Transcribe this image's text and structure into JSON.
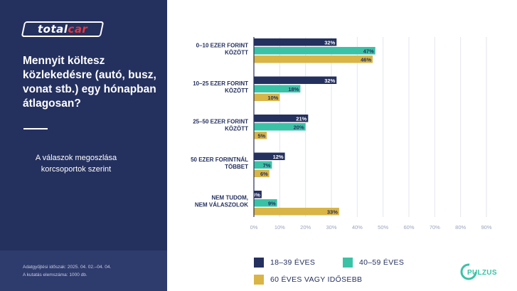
{
  "brand": {
    "logo_left": "total",
    "logo_right": "car",
    "partner": "PULZUS"
  },
  "question": "Mennyit költesz közlekedésre (autó, busz, vonat stb.) egy hónapban átlagosan?",
  "subtitle": "A válaszok megoszlása korcsoportok szerint",
  "footnote": {
    "line1": "Adatgyűjtési időszak: 2025. 04. 02.–04. 04.",
    "line2": "A kutatás elemszáma: 1000 db."
  },
  "colors": {
    "panel": "#24305e",
    "series1": "#24305e",
    "series2": "#3ac2a6",
    "series3": "#d9b547",
    "grid": "#e3e6ee",
    "axis_text": "#9aa3bd"
  },
  "chart_data": {
    "type": "bar",
    "orientation": "horizontal",
    "title": "Mennyit költesz közlekedésre (autó, busz, vonat stb.) egy hónapban átlagosan?",
    "categories": [
      [
        "0–10 EZER FORINT",
        "KÖZÖTT"
      ],
      [
        "10–25 EZER FORINT",
        "KÖZÖTT"
      ],
      [
        "25–50 EZER FORINT",
        "KÖZÖTT"
      ],
      [
        "50 EZER FORINTNÁL",
        "TÖBBET"
      ],
      [
        "NEM TUDOM,",
        "NEM VÁLASZOLOK"
      ]
    ],
    "series": [
      {
        "name": "18–39 ÉVES",
        "values": [
          32,
          32,
          21,
          12,
          3
        ],
        "color": "#24305e"
      },
      {
        "name": "40–59 ÉVES",
        "values": [
          47,
          18,
          20,
          7,
          9
        ],
        "color": "#3ac2a6"
      },
      {
        "name": "60 ÉVES VAGY IDŐSEBB",
        "values": [
          46,
          10,
          5,
          6,
          33
        ],
        "color": "#d9b547"
      }
    ],
    "xlim": [
      0,
      90
    ],
    "ticks": [
      "0%",
      "10%",
      "20%",
      "30%",
      "40%",
      "50%",
      "60%",
      "70%",
      "80%",
      "90%"
    ],
    "value_suffix": "%",
    "grid": true,
    "legend": "bottom"
  }
}
